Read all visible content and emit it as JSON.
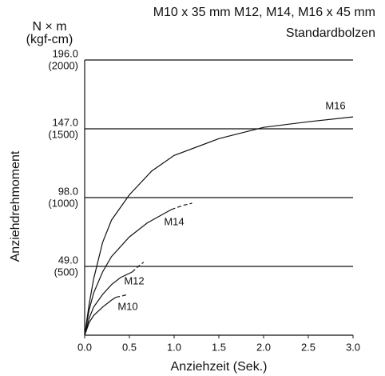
{
  "chart_data": {
    "type": "line",
    "title": "M10 x 35 mm M12, M14, M16 x 45 mm",
    "subtitle": "Standardbolzen",
    "y_unit": "N × m",
    "y_unit_secondary": "(kgf-cm)",
    "ylabel": "Anziehdrehmoment",
    "xlabel": "Anziehzeit (Sek.)",
    "xlim": [
      0,
      3
    ],
    "ylim": [
      0,
      196
    ],
    "xticks": [
      {
        "value": 0,
        "label": "0.0"
      },
      {
        "value": 0.5,
        "label": "0.5"
      },
      {
        "value": 1,
        "label": "1.0"
      },
      {
        "value": 1.5,
        "label": "1.5"
      },
      {
        "value": 2,
        "label": "2.0"
      },
      {
        "value": 2.5,
        "label": "2.5"
      },
      {
        "value": 3,
        "label": "3.0"
      }
    ],
    "yticks": [
      {
        "value": 49,
        "label": "49.0"
      },
      {
        "value": 98,
        "label": "98.0"
      },
      {
        "value": 147,
        "label": "147.0"
      },
      {
        "value": 196,
        "label": "196.0"
      }
    ],
    "yticks_secondary": [
      {
        "value": 49,
        "label": "(500)"
      },
      {
        "value": 98,
        "label": "(1000)"
      },
      {
        "value": 147,
        "label": "(1500)"
      },
      {
        "value": 196,
        "label": "(2000)"
      }
    ],
    "grid": true,
    "color": "#111111",
    "series": [
      {
        "name": "M16",
        "x": [
          0,
          0.05,
          0.1,
          0.2,
          0.3,
          0.5,
          0.75,
          1.0,
          1.5,
          2.0,
          2.5,
          3.0
        ],
        "values": [
          0,
          22,
          40,
          66,
          82,
          100,
          117,
          128,
          140,
          148,
          152,
          155.5
        ]
      },
      {
        "name": "M14",
        "x": [
          0,
          0.05,
          0.1,
          0.2,
          0.3,
          0.5,
          0.7,
          0.97
        ],
        "values": [
          0,
          18,
          30,
          45,
          56,
          70,
          80,
          89.5
        ],
        "dashed_x": [
          0.97,
          1.1,
          1.2
        ],
        "dashed_values": [
          89.5,
          92.5,
          94
        ]
      },
      {
        "name": "M12",
        "x": [
          0,
          0.05,
          0.1,
          0.2,
          0.3,
          0.4,
          0.53
        ],
        "values": [
          0,
          12,
          20,
          29,
          36,
          41,
          45
        ],
        "dashed_x": [
          0.53,
          0.6,
          0.66
        ],
        "dashed_values": [
          45,
          49,
          52
        ]
      },
      {
        "name": "M10",
        "x": [
          0,
          0.05,
          0.1,
          0.2,
          0.3,
          0.35
        ],
        "values": [
          0,
          9,
          14,
          20,
          25,
          27
        ],
        "dashed_x": [
          0.35,
          0.42,
          0.48
        ],
        "dashed_values": [
          27,
          28,
          29
        ]
      }
    ]
  }
}
